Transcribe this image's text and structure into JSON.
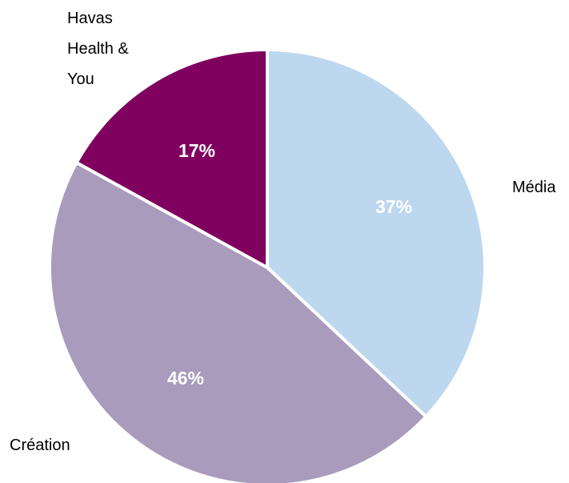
{
  "chart_data": {
    "type": "pie",
    "categories": [
      "Média",
      "Création",
      "Havas Health & You"
    ],
    "values": [
      37,
      46,
      17
    ],
    "value_labels": [
      "37%",
      "46%",
      "17%"
    ],
    "colors": [
      "#bdd7ee",
      "#a89bbc",
      "#800060"
    ],
    "label_lines": {
      "media": [
        "Média"
      ],
      "creation": [
        "Création"
      ],
      "havas": [
        "Havas",
        "Health &",
        "You"
      ]
    },
    "start": "12 o'clock",
    "direction": "clockwise",
    "legend": "none"
  }
}
